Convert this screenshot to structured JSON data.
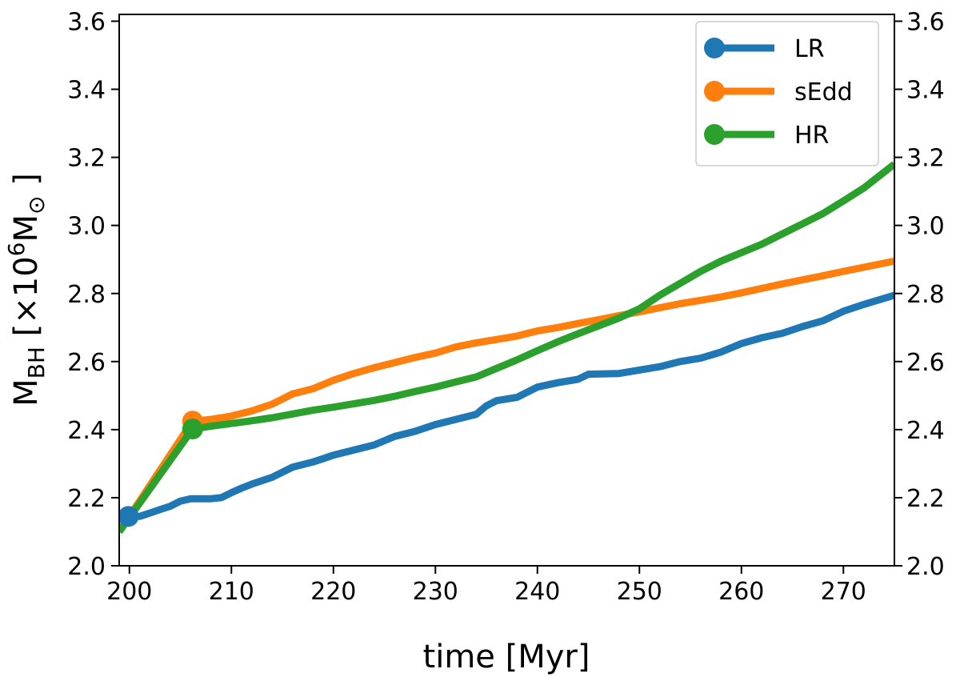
{
  "chart_data": {
    "type": "line",
    "title": "",
    "xlabel": "time [Myr]",
    "ylabel": {
      "base": "M",
      "base_sub": "BH",
      "bracket_open": "[",
      "times": "×",
      "mantissa": "10",
      "exponent": "6",
      "unit": "M",
      "unit_sub": "⊙",
      "bracket_close": "]"
    },
    "xlim": [
      199,
      275
    ],
    "ylim": [
      2.0,
      3.62
    ],
    "xticks": [
      200,
      210,
      220,
      230,
      240,
      250,
      260,
      270
    ],
    "xtick_labels": [
      "200",
      "210",
      "220",
      "230",
      "240",
      "250",
      "260",
      "270"
    ],
    "yticks": [
      2.0,
      2.2,
      2.4,
      2.6,
      2.8,
      3.0,
      3.2,
      3.4,
      3.6
    ],
    "ytick_labels": [
      "2.0",
      "2.2",
      "2.4",
      "2.6",
      "2.8",
      "3.0",
      "3.2",
      "3.4",
      "3.6"
    ],
    "right_axis_duplicate": true,
    "grid": false,
    "legend_position": "top-right",
    "series": [
      {
        "name": "LR",
        "color": "#1f77b4",
        "start_marker": [
          199.9,
          2.145
        ],
        "x": [
          199.9,
          201,
          202,
          203,
          204,
          205,
          206,
          208,
          209,
          210,
          211,
          212,
          214,
          216,
          218,
          220,
          222,
          224,
          226,
          228,
          230,
          232,
          234,
          235,
          236,
          238,
          240,
          242,
          244,
          245,
          248,
          250,
          252,
          254,
          256,
          258,
          260,
          262,
          264,
          266,
          268,
          270,
          272,
          275
        ],
        "y": [
          2.145,
          2.145,
          2.155,
          2.165,
          2.175,
          2.19,
          2.197,
          2.197,
          2.2,
          2.215,
          2.228,
          2.24,
          2.26,
          2.29,
          2.305,
          2.325,
          2.34,
          2.355,
          2.38,
          2.395,
          2.415,
          2.43,
          2.445,
          2.47,
          2.485,
          2.495,
          2.525,
          2.538,
          2.548,
          2.563,
          2.565,
          2.575,
          2.585,
          2.6,
          2.61,
          2.628,
          2.653,
          2.67,
          2.683,
          2.703,
          2.72,
          2.748,
          2.768,
          2.795
        ]
      },
      {
        "name": "sEdd",
        "color": "#ff7f0e",
        "start_marker": [
          206.2,
          2.425
        ],
        "x": [
          199,
          206.2,
          208,
          210,
          212,
          214,
          216,
          218,
          220,
          222,
          224,
          226,
          228,
          230,
          232,
          234,
          236,
          238,
          240,
          242,
          244,
          246,
          248,
          250,
          252,
          254,
          256,
          258,
          260,
          262,
          264,
          266,
          268,
          270,
          272,
          275
        ],
        "y": [
          2.1,
          2.425,
          2.43,
          2.44,
          2.455,
          2.475,
          2.505,
          2.52,
          2.545,
          2.565,
          2.582,
          2.597,
          2.612,
          2.625,
          2.643,
          2.655,
          2.665,
          2.675,
          2.69,
          2.7,
          2.712,
          2.723,
          2.735,
          2.746,
          2.758,
          2.77,
          2.78,
          2.79,
          2.802,
          2.815,
          2.828,
          2.84,
          2.852,
          2.865,
          2.877,
          2.895
        ]
      },
      {
        "name": "HR",
        "color": "#2ca02c",
        "start_marker": [
          206.2,
          2.402
        ],
        "x": [
          199,
          206.2,
          208,
          210,
          212,
          214,
          216,
          218,
          220,
          222,
          224,
          226,
          228,
          230,
          232,
          234,
          236,
          238,
          240,
          242,
          244,
          246,
          248,
          250,
          252,
          254,
          256,
          258,
          260,
          262,
          264,
          266,
          268,
          270,
          272,
          275
        ],
        "y": [
          2.1,
          2.402,
          2.41,
          2.418,
          2.426,
          2.435,
          2.446,
          2.457,
          2.466,
          2.476,
          2.486,
          2.498,
          2.512,
          2.525,
          2.54,
          2.555,
          2.58,
          2.605,
          2.632,
          2.658,
          2.682,
          2.705,
          2.728,
          2.755,
          2.795,
          2.83,
          2.865,
          2.895,
          2.92,
          2.945,
          2.975,
          3.005,
          3.035,
          3.072,
          3.11,
          3.18
        ]
      }
    ]
  }
}
